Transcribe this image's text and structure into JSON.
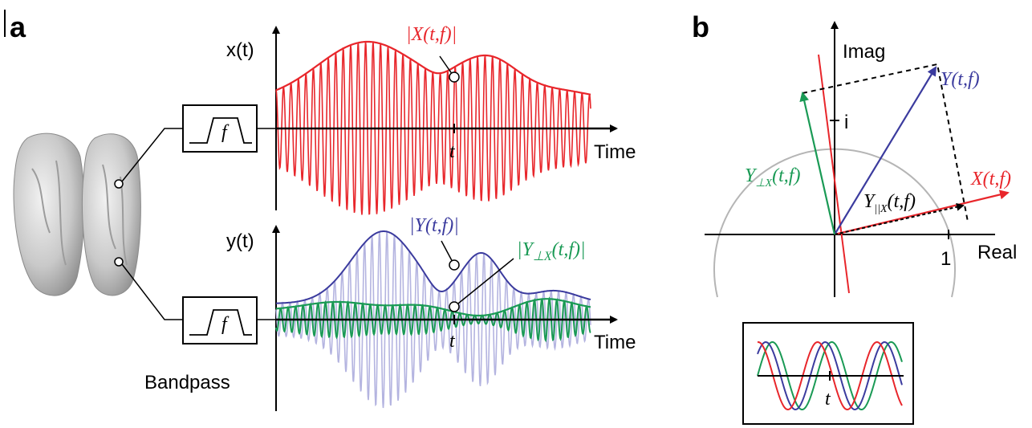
{
  "panels": {
    "a": "a",
    "b": "b"
  },
  "panel_a": {
    "x_label": "x(t)",
    "y_label": "y(t)",
    "time_label_top": "Time",
    "time_label_bottom": "Time",
    "t_top": "t",
    "t_bottom": "t",
    "filter_symbol_top": "f",
    "filter_symbol_bottom": "f",
    "bandpass_label": "Bandpass",
    "env_X": "|X(t,f)|",
    "env_Y": "|Y(t,f)|",
    "env_Yperp_pre": "|Y",
    "env_Yperp_sub": "⊥X",
    "env_Yperp_post": "(t,f)|"
  },
  "panel_b": {
    "imag_label": "Imag",
    "real_label": "Real",
    "i_tick": "i",
    "one_tick": "1",
    "Y_label": "Y(t,f)",
    "X_label": "X(t,f)",
    "Ypar_main": "Y",
    "Ypar_sub": "||X",
    "Ypar_post": "(t,f)",
    "Yperp_main": "Y",
    "Yperp_sub": "⊥X",
    "Yperp_post": "(t,f)",
    "inset_t": "t"
  },
  "colors": {
    "red": "#e8262b",
    "blue": "#3b3b9e",
    "green": "#1a9a55",
    "lightblue": "#b4b4e0",
    "gray": "#b5b5b5",
    "black": "#000000"
  }
}
